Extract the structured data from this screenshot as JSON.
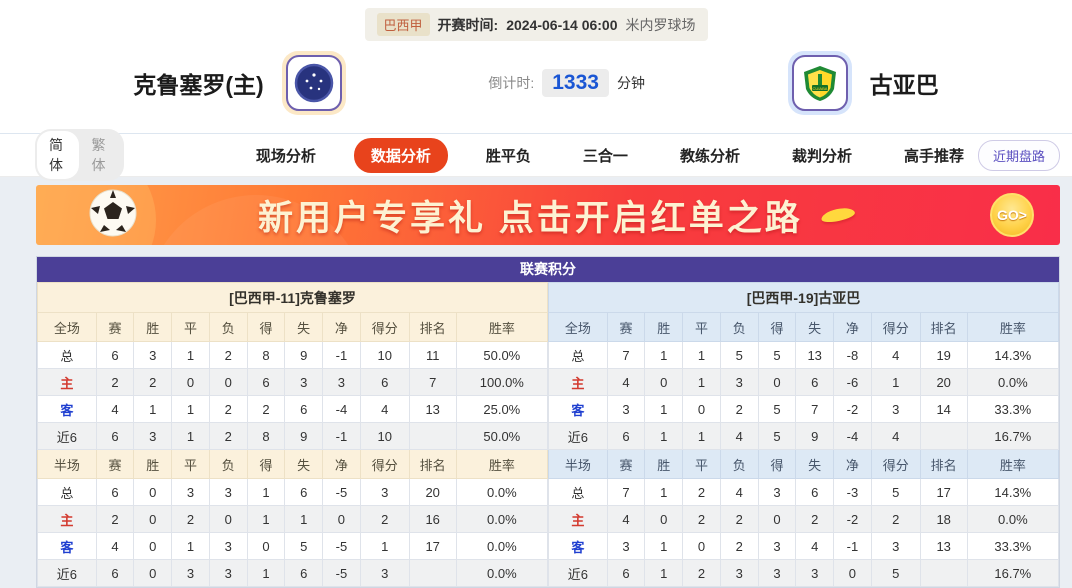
{
  "colors": {
    "accent_purple": "#4b3f97",
    "active_tab_orange": "#e8431c",
    "countdown_blue": "#1a56d4",
    "banner_gradient_from": "#ffa04a",
    "banner_gradient_to": "#f92e49",
    "home_header_bg": "#fbf1dc",
    "away_header_bg": "#dde9f5",
    "home_label_red": "#d33a2f",
    "away_label_blue": "#1f3fd0"
  },
  "icons": {
    "home_badge": "cruzeiro-club-badge",
    "away_badge": "cuiaba-club-badge",
    "ball": "soccer-ball-icon",
    "go": "go-coin-icon"
  },
  "match_header": {
    "league": "巴西甲",
    "kickoff_label": "开赛时间:",
    "kickoff_time": "2024-06-14 06:00",
    "venue": "米内罗球场",
    "home_team": "克鲁塞罗(主)",
    "away_team": "古亚巴",
    "countdown_label": "倒计时:",
    "countdown_value": "1333",
    "countdown_unit": "分钟"
  },
  "nav": {
    "lang_simplified": "简体",
    "lang_traditional": "繁体",
    "tabs": [
      "现场分析",
      "数据分析",
      "胜平负",
      "三合一",
      "教练分析",
      "裁判分析",
      "高手推荐"
    ],
    "active_tab": "数据分析",
    "recent_button": "近期盘路"
  },
  "banner": {
    "text": "新用户专享礼  点击开启红单之路",
    "go_label": "GO>"
  },
  "league_table": {
    "title": "联赛积分",
    "home": {
      "team_header": "[巴西甲-11]克鲁塞罗",
      "full": {
        "columns": [
          "全场",
          "赛",
          "胜",
          "平",
          "负",
          "得",
          "失",
          "净",
          "得分",
          "排名",
          "胜率"
        ],
        "rows": [
          [
            "总",
            "6",
            "3",
            "1",
            "2",
            "8",
            "9",
            "-1",
            "10",
            "11",
            "50.0%"
          ],
          [
            "主",
            "2",
            "2",
            "0",
            "0",
            "6",
            "3",
            "3",
            "6",
            "7",
            "100.0%"
          ],
          [
            "客",
            "4",
            "1",
            "1",
            "2",
            "2",
            "6",
            "-4",
            "4",
            "13",
            "25.0%"
          ],
          [
            "近6",
            "6",
            "3",
            "1",
            "2",
            "8",
            "9",
            "-1",
            "10",
            "",
            "50.0%"
          ]
        ]
      },
      "half": {
        "columns": [
          "半场",
          "赛",
          "胜",
          "平",
          "负",
          "得",
          "失",
          "净",
          "得分",
          "排名",
          "胜率"
        ],
        "rows": [
          [
            "总",
            "6",
            "0",
            "3",
            "3",
            "1",
            "6",
            "-5",
            "3",
            "20",
            "0.0%"
          ],
          [
            "主",
            "2",
            "0",
            "2",
            "0",
            "1",
            "1",
            "0",
            "2",
            "16",
            "0.0%"
          ],
          [
            "客",
            "4",
            "0",
            "1",
            "3",
            "0",
            "5",
            "-5",
            "1",
            "17",
            "0.0%"
          ],
          [
            "近6",
            "6",
            "0",
            "3",
            "3",
            "1",
            "6",
            "-5",
            "3",
            "",
            "0.0%"
          ]
        ]
      }
    },
    "away": {
      "team_header": "[巴西甲-19]古亚巴",
      "full": {
        "columns": [
          "全场",
          "赛",
          "胜",
          "平",
          "负",
          "得",
          "失",
          "净",
          "得分",
          "排名",
          "胜率"
        ],
        "rows": [
          [
            "总",
            "7",
            "1",
            "1",
            "5",
            "5",
            "13",
            "-8",
            "4",
            "19",
            "14.3%"
          ],
          [
            "主",
            "4",
            "0",
            "1",
            "3",
            "0",
            "6",
            "-6",
            "1",
            "20",
            "0.0%"
          ],
          [
            "客",
            "3",
            "1",
            "0",
            "2",
            "5",
            "7",
            "-2",
            "3",
            "14",
            "33.3%"
          ],
          [
            "近6",
            "6",
            "1",
            "1",
            "4",
            "5",
            "9",
            "-4",
            "4",
            "",
            "16.7%"
          ]
        ]
      },
      "half": {
        "columns": [
          "半场",
          "赛",
          "胜",
          "平",
          "负",
          "得",
          "失",
          "净",
          "得分",
          "排名",
          "胜率"
        ],
        "rows": [
          [
            "总",
            "7",
            "1",
            "2",
            "4",
            "3",
            "6",
            "-3",
            "5",
            "17",
            "14.3%"
          ],
          [
            "主",
            "4",
            "0",
            "2",
            "2",
            "0",
            "2",
            "-2",
            "2",
            "18",
            "0.0%"
          ],
          [
            "客",
            "3",
            "1",
            "0",
            "2",
            "3",
            "4",
            "-1",
            "3",
            "13",
            "33.3%"
          ],
          [
            "近6",
            "6",
            "1",
            "2",
            "3",
            "3",
            "3",
            "0",
            "5",
            "",
            "16.7%"
          ]
        ]
      }
    }
  }
}
